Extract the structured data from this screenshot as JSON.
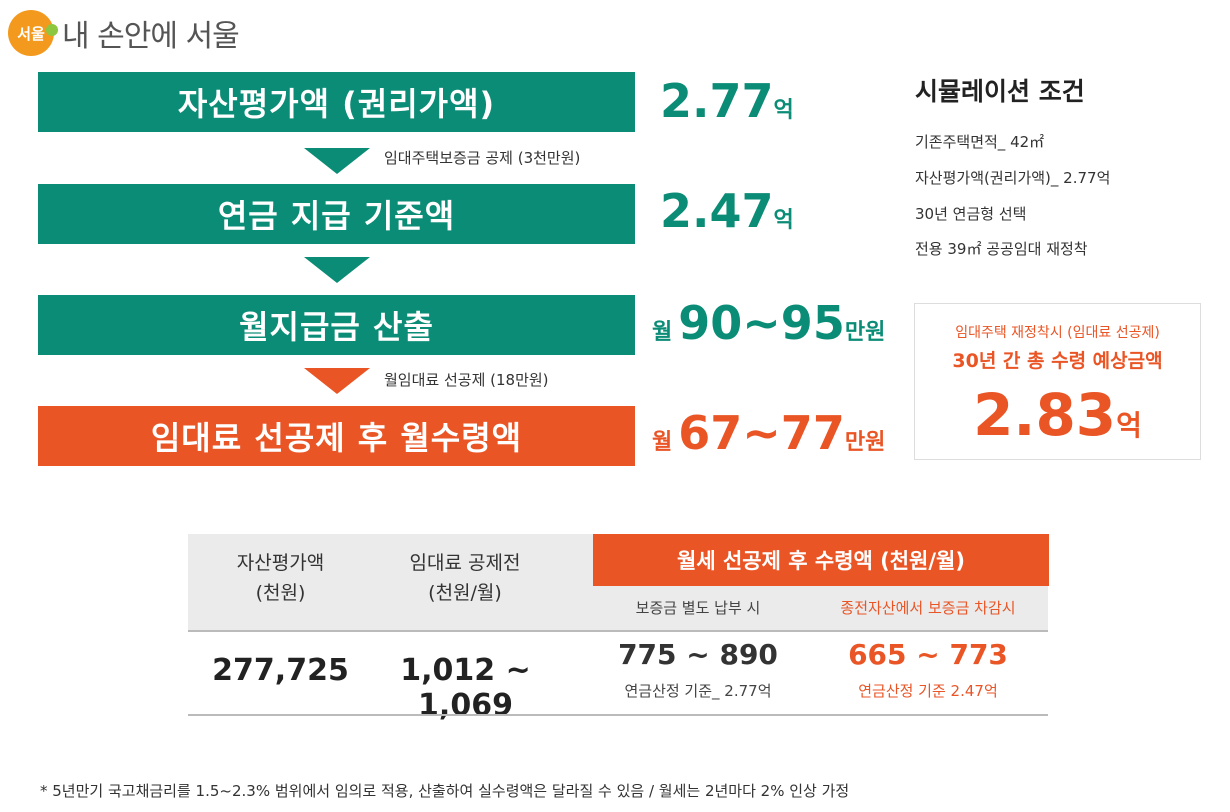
{
  "logo": {
    "badge": "서울",
    "text": "내 손안에 서울"
  },
  "steps": [
    {
      "label": "자산평가액 (권리가액)",
      "value_pre": "",
      "value_main": "2.77",
      "value_unit": "억"
    },
    {
      "label": "연금 지급 기준액",
      "value_pre": "",
      "value_main": "2.47",
      "value_unit": "억"
    },
    {
      "label": "월지급금 산출",
      "value_pre": "월",
      "value_main": "90~95",
      "value_unit": "만원"
    },
    {
      "label": "임대료 선공제 후 월수령액",
      "value_pre": "월",
      "value_main": "67~77",
      "value_unit": "만원"
    }
  ],
  "notes": {
    "deposit_deduction": "임대주택보증금 공제 (3천만원)",
    "rent_deduction": "월임대료 선공제 (18만원)"
  },
  "simulation": {
    "title": "시뮬레이션 조건",
    "items": [
      "기존주택면적_ 42㎡",
      "자산평가액(권리가액)_ 2.77억",
      "30년 연금형 선택",
      "전용 39㎡ 공공임대 재정착"
    ]
  },
  "expected": {
    "line1": "임대주택 재정착시 (임대료 선공제)",
    "line2": "30년 간 총 수령 예상금액",
    "amount": "2.83",
    "unit": "억"
  },
  "table": {
    "col1": [
      "자산평가액",
      "(천원)"
    ],
    "col2": [
      "임대료 공제전",
      "(천원/월)"
    ],
    "monthly_header": "월세 선공제 후 수령액 (천원/월)",
    "sub1": "보증금 별도 납부 시",
    "sub2": "종전자산에서 보증금 차감시",
    "row": {
      "asset": "277,725",
      "pre_deduction": "1,012 ~ 1,069",
      "separate": "775 ~ 890",
      "separate_note": "연금산정 기준_ 2.77억",
      "deducted": "665 ~ 773",
      "deducted_note": "연금산정 기준 2.47억"
    }
  },
  "footnote": "* 5년만기 국고채금리를 1.5~2.3% 범위에서 임의로 적용, 산출하여 실수령액은 달라질 수 있음 / 월세는 2년마다 2% 인상 가정",
  "colors": {
    "teal": "#0b8c76",
    "orange": "#ea5526"
  }
}
